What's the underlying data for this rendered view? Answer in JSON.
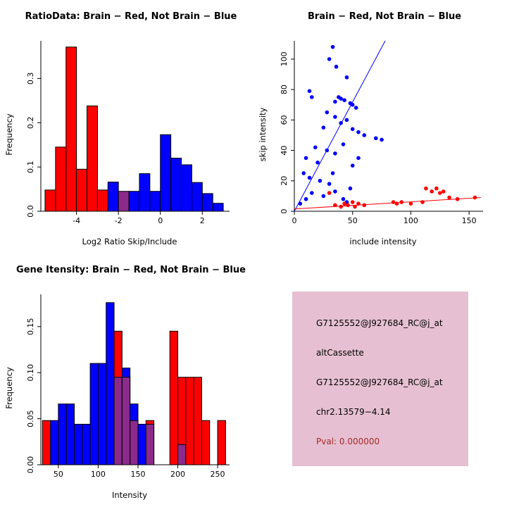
{
  "colors": {
    "red": "#FF0000",
    "blue": "#0000FF",
    "purple": "#8B2A8B",
    "axis": "#000000",
    "pval_text": "#A52A2A",
    "info_box_bg": "#E6C0D2"
  },
  "chart_data": [
    {
      "id": "ratio-histogram",
      "type": "bar",
      "title": "RatioData: Brain − Red, Not Brain − Blue",
      "xlabel": "Log2 Ratio Skip/Include",
      "ylabel": "Frequency",
      "xlim": [
        -5.7,
        3.3
      ],
      "ylim": [
        0,
        0.385
      ],
      "grid": false,
      "xticks": [
        {
          "v": -4,
          "label": "-4"
        },
        {
          "v": -2,
          "label": "-2"
        },
        {
          "v": 0,
          "label": "0"
        },
        {
          "v": 2,
          "label": "2"
        }
      ],
      "yticks": [
        {
          "v": 0.0,
          "label": "0.0"
        },
        {
          "v": 0.1,
          "label": "0.1"
        },
        {
          "v": 0.2,
          "label": "0.2"
        },
        {
          "v": 0.3,
          "label": "0.3"
        }
      ],
      "bars": [
        {
          "x0": -5.5,
          "x1": -5.0,
          "h": 0.048,
          "color": "red"
        },
        {
          "x0": -5.0,
          "x1": -4.5,
          "h": 0.145,
          "color": "red"
        },
        {
          "x0": -4.5,
          "x1": -4.0,
          "h": 0.371,
          "color": "red"
        },
        {
          "x0": -4.0,
          "x1": -3.5,
          "h": 0.095,
          "color": "red"
        },
        {
          "x0": -3.5,
          "x1": -3.0,
          "h": 0.238,
          "color": "red"
        },
        {
          "x0": -3.0,
          "x1": -2.5,
          "h": 0.048,
          "color": "red"
        },
        {
          "x0": -2.5,
          "x1": -2.0,
          "h": 0.066,
          "color": "blue"
        },
        {
          "x0": -2.0,
          "x1": -1.5,
          "h": 0.045,
          "color": "purple"
        },
        {
          "x0": -1.5,
          "x1": -1.0,
          "h": 0.045,
          "color": "blue"
        },
        {
          "x0": -1.0,
          "x1": -0.5,
          "h": 0.085,
          "color": "blue"
        },
        {
          "x0": -0.5,
          "x1": 0.0,
          "h": 0.045,
          "color": "blue"
        },
        {
          "x0": 0.0,
          "x1": 0.5,
          "h": 0.173,
          "color": "blue"
        },
        {
          "x0": 0.5,
          "x1": 1.0,
          "h": 0.12,
          "color": "blue"
        },
        {
          "x0": 1.0,
          "x1": 1.5,
          "h": 0.105,
          "color": "blue"
        },
        {
          "x0": 1.5,
          "x1": 2.0,
          "h": 0.065,
          "color": "blue"
        },
        {
          "x0": 2.0,
          "x1": 2.5,
          "h": 0.04,
          "color": "blue"
        },
        {
          "x0": 2.5,
          "x1": 3.0,
          "h": 0.018,
          "color": "blue"
        }
      ]
    },
    {
      "id": "intensity-scatter",
      "type": "scatter",
      "title": "Brain − Red, Not Brain − Blue",
      "xlabel": "include intensity",
      "ylabel": "skip intensity",
      "xlim": [
        0,
        162
      ],
      "ylim": [
        0,
        112
      ],
      "grid": false,
      "xticks": [
        {
          "v": 0,
          "label": "0"
        },
        {
          "v": 50,
          "label": "50"
        },
        {
          "v": 100,
          "label": "100"
        },
        {
          "v": 150,
          "label": "150"
        }
      ],
      "yticks": [
        {
          "v": 0,
          "label": "0"
        },
        {
          "v": 20,
          "label": "20"
        },
        {
          "v": 40,
          "label": "40"
        },
        {
          "v": 60,
          "label": "60"
        },
        {
          "v": 80,
          "label": "80"
        },
        {
          "v": 100,
          "label": "100"
        }
      ],
      "series": [
        {
          "name": "Not Brain",
          "color": "blue",
          "points": [
            [
              33,
              108
            ],
            [
              30,
              100
            ],
            [
              36,
              95
            ],
            [
              45,
              88
            ],
            [
              13,
              79
            ],
            [
              15,
              75
            ],
            [
              38,
              75
            ],
            [
              40,
              74
            ],
            [
              43,
              73
            ],
            [
              35,
              72
            ],
            [
              48,
              71
            ],
            [
              50,
              70
            ],
            [
              53,
              68
            ],
            [
              28,
              65
            ],
            [
              35,
              62
            ],
            [
              45,
              60
            ],
            [
              40,
              58
            ],
            [
              25,
              55
            ],
            [
              50,
              54
            ],
            [
              55,
              52
            ],
            [
              60,
              50
            ],
            [
              70,
              48
            ],
            [
              75,
              47
            ],
            [
              18,
              42
            ],
            [
              28,
              40
            ],
            [
              42,
              44
            ],
            [
              35,
              38
            ],
            [
              10,
              35
            ],
            [
              20,
              32
            ],
            [
              50,
              30
            ],
            [
              55,
              35
            ],
            [
              8,
              25
            ],
            [
              13,
              22
            ],
            [
              22,
              20
            ],
            [
              30,
              18
            ],
            [
              48,
              15
            ],
            [
              35,
              13
            ],
            [
              25,
              10
            ],
            [
              15,
              12
            ],
            [
              10,
              8
            ],
            [
              5,
              5
            ],
            [
              42,
              8
            ],
            [
              45,
              6
            ],
            [
              33,
              25
            ]
          ]
        },
        {
          "name": "Brain",
          "color": "red",
          "points": [
            [
              30,
              12
            ],
            [
              35,
              4
            ],
            [
              40,
              3
            ],
            [
              43,
              5
            ],
            [
              46,
              4
            ],
            [
              50,
              6
            ],
            [
              52,
              3
            ],
            [
              55,
              5
            ],
            [
              60,
              4
            ],
            [
              85,
              6
            ],
            [
              88,
              5
            ],
            [
              92,
              6
            ],
            [
              100,
              5
            ],
            [
              110,
              6
            ],
            [
              113,
              15
            ],
            [
              118,
              13
            ],
            [
              122,
              15
            ],
            [
              125,
              12
            ],
            [
              128,
              13
            ],
            [
              133,
              9
            ],
            [
              140,
              8
            ],
            [
              155,
              9
            ]
          ]
        }
      ],
      "lines": [
        {
          "color": "blue",
          "x1": 0,
          "y1": 0,
          "x2": 78,
          "y2": 112
        },
        {
          "color": "red",
          "x1": 0,
          "y1": 1.5,
          "x2": 160,
          "y2": 9
        }
      ]
    },
    {
      "id": "gene-intensity-histogram",
      "type": "bar",
      "title": "Gene Itensity: Brain − Red, Not Brain − Blue",
      "xlabel": "Intensity",
      "ylabel": "Frequency",
      "xlim": [
        28,
        265
      ],
      "ylim": [
        0,
        0.185
      ],
      "grid": false,
      "xticks": [
        {
          "v": 50,
          "label": "50"
        },
        {
          "v": 100,
          "label": "100"
        },
        {
          "v": 150,
          "label": "150"
        },
        {
          "v": 200,
          "label": "200"
        },
        {
          "v": 250,
          "label": "250"
        }
      ],
      "yticks": [
        {
          "v": 0.0,
          "label": "0.00"
        },
        {
          "v": 0.05,
          "label": "0.05"
        },
        {
          "v": 0.1,
          "label": "0.10"
        },
        {
          "v": 0.15,
          "label": "0.15"
        }
      ],
      "bars": [
        {
          "x0": 30,
          "x1": 40,
          "h": 0.048,
          "color": "red"
        },
        {
          "x0": 40,
          "x1": 50,
          "h": 0.048,
          "color": "blue"
        },
        {
          "x0": 50,
          "x1": 60,
          "h": 0.066,
          "color": "blue"
        },
        {
          "x0": 60,
          "x1": 70,
          "h": 0.066,
          "color": "blue"
        },
        {
          "x0": 70,
          "x1": 80,
          "h": 0.044,
          "color": "blue"
        },
        {
          "x0": 80,
          "x1": 90,
          "h": 0.044,
          "color": "blue"
        },
        {
          "x0": 90,
          "x1": 100,
          "h": 0.11,
          "color": "blue"
        },
        {
          "x0": 100,
          "x1": 110,
          "h": 0.11,
          "color": "blue"
        },
        {
          "x0": 110,
          "x1": 120,
          "h": 0.176,
          "color": "blue"
        },
        {
          "x0": 120,
          "x1": 130,
          "h": 0.145,
          "color": "red"
        },
        {
          "x0": 120,
          "x1": 130,
          "h": 0.095,
          "color": "purple"
        },
        {
          "x0": 130,
          "x1": 140,
          "h": 0.105,
          "color": "blue"
        },
        {
          "x0": 130,
          "x1": 140,
          "h": 0.095,
          "color": "purple"
        },
        {
          "x0": 140,
          "x1": 150,
          "h": 0.066,
          "color": "blue"
        },
        {
          "x0": 140,
          "x1": 150,
          "h": 0.048,
          "color": "purple"
        },
        {
          "x0": 150,
          "x1": 160,
          "h": 0.044,
          "color": "blue"
        },
        {
          "x0": 160,
          "x1": 170,
          "h": 0.048,
          "color": "red"
        },
        {
          "x0": 160,
          "x1": 170,
          "h": 0.044,
          "color": "purple"
        },
        {
          "x0": 190,
          "x1": 200,
          "h": 0.145,
          "color": "red"
        },
        {
          "x0": 200,
          "x1": 210,
          "h": 0.095,
          "color": "red"
        },
        {
          "x0": 200,
          "x1": 210,
          "h": 0.022,
          "color": "purple"
        },
        {
          "x0": 210,
          "x1": 220,
          "h": 0.095,
          "color": "red"
        },
        {
          "x0": 220,
          "x1": 230,
          "h": 0.095,
          "color": "red"
        },
        {
          "x0": 230,
          "x1": 240,
          "h": 0.048,
          "color": "red"
        },
        {
          "x0": 250,
          "x1": 260,
          "h": 0.048,
          "color": "red"
        }
      ]
    }
  ],
  "info_panel": {
    "bg": "#E6C0D2",
    "lines": [
      {
        "text": "G7125552@J927684_RC@j_at",
        "color": "#000000"
      },
      {
        "text": "altCassette",
        "color": "#000000"
      },
      {
        "text": "G7125552@J927684_RC@j_at",
        "color": "#000000"
      },
      {
        "text": "chr2.13579−4.14",
        "color": "#000000"
      },
      {
        "text": "Pval: 0.000000",
        "color": "#A52A2A"
      }
    ]
  }
}
